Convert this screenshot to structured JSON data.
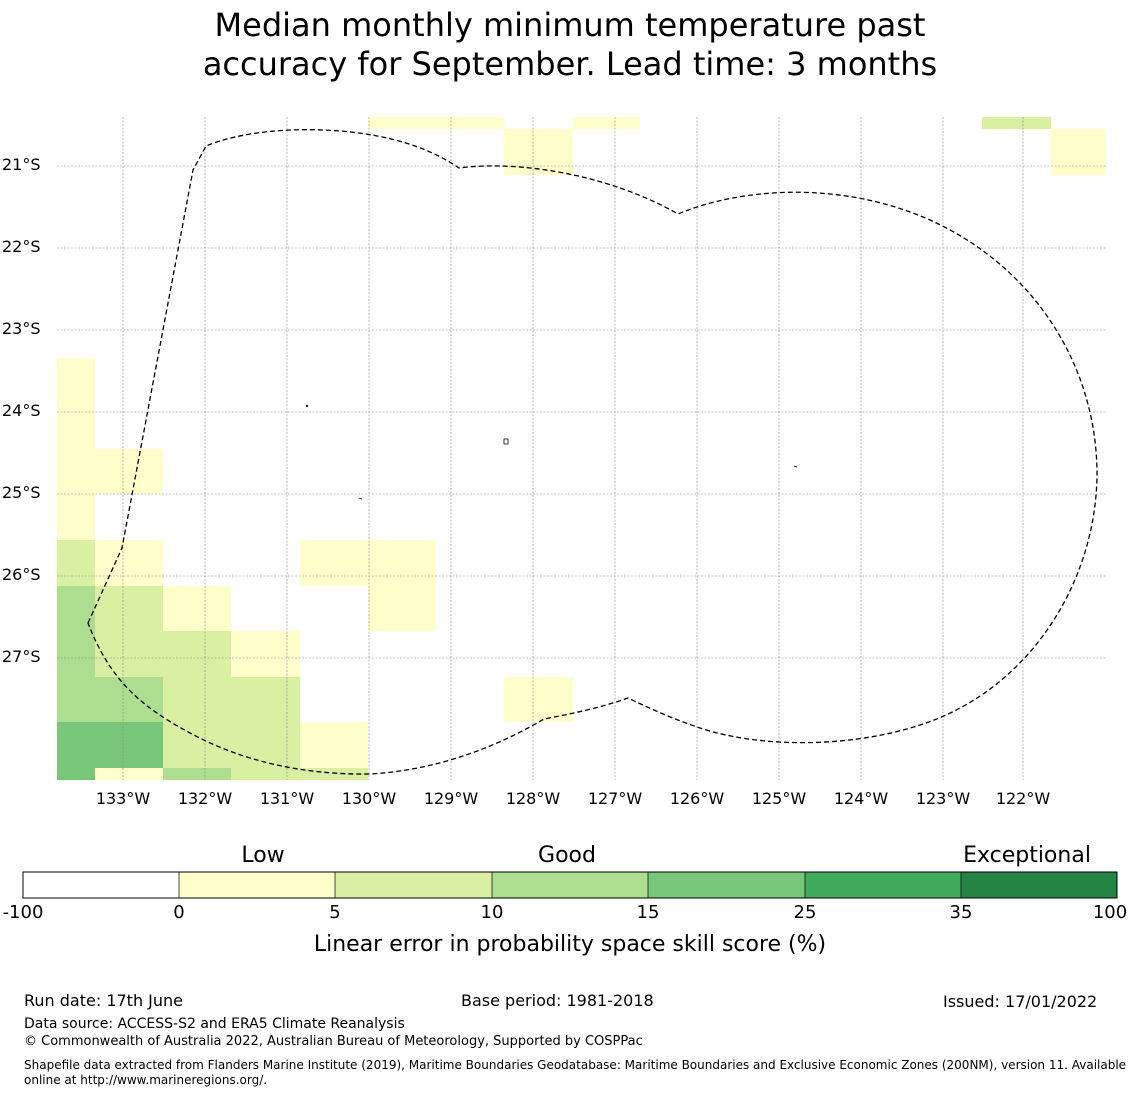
{
  "title_line1": "Median monthly minimum temperature past",
  "title_line2": "accuracy for September. Lead time: 3 months",
  "map": {
    "lat_labels": [
      "21°S",
      "22°S",
      "23°S",
      "24°S",
      "25°S",
      "26°S",
      "27°S"
    ],
    "lon_labels": [
      "133°W",
      "132°W",
      "131°W",
      "130°W",
      "129°W",
      "128°W",
      "127°W",
      "126°W",
      "125°W",
      "124°W",
      "123°W",
      "122°W"
    ],
    "boundary": "dashed EEZ outline",
    "cells_skill_pct_classes": {
      "0-5": "pale yellow",
      "5-10": "light green",
      "10-15": "green",
      "15-25": "medium green"
    }
  },
  "colorbar": {
    "category_labels": [
      "Low",
      "Good",
      "Exceptional"
    ],
    "ticks": [
      "-100",
      "0",
      "5",
      "10",
      "15",
      "25",
      "35",
      "100"
    ],
    "colors": [
      "#ffffff",
      "#ffffcc",
      "#d9f0a3",
      "#addd8e",
      "#78c679",
      "#41ab5d",
      "#238443"
    ],
    "title": "Linear error in probability space skill score (%)"
  },
  "footer": {
    "run_date": "Run date: 17th June",
    "base_period": "Base period: 1981-2018",
    "issued": "Issued: 17/01/2022",
    "data_source": "Data source: ACCESS-S2 and ERA5 Climate Reanalysis",
    "copyright": "© Commonwealth of Australia 2022, Australian Bureau of Meteorology, Supported by COSPPac",
    "shapefile": "Shapefile data extracted from Flanders Marine Institute (2019), Maritime Boundaries Geodatabase: Maritime Boundaries and Exclusive Economic Zones (200NM), version 11. Available online at http://www.marineregions.org/."
  }
}
